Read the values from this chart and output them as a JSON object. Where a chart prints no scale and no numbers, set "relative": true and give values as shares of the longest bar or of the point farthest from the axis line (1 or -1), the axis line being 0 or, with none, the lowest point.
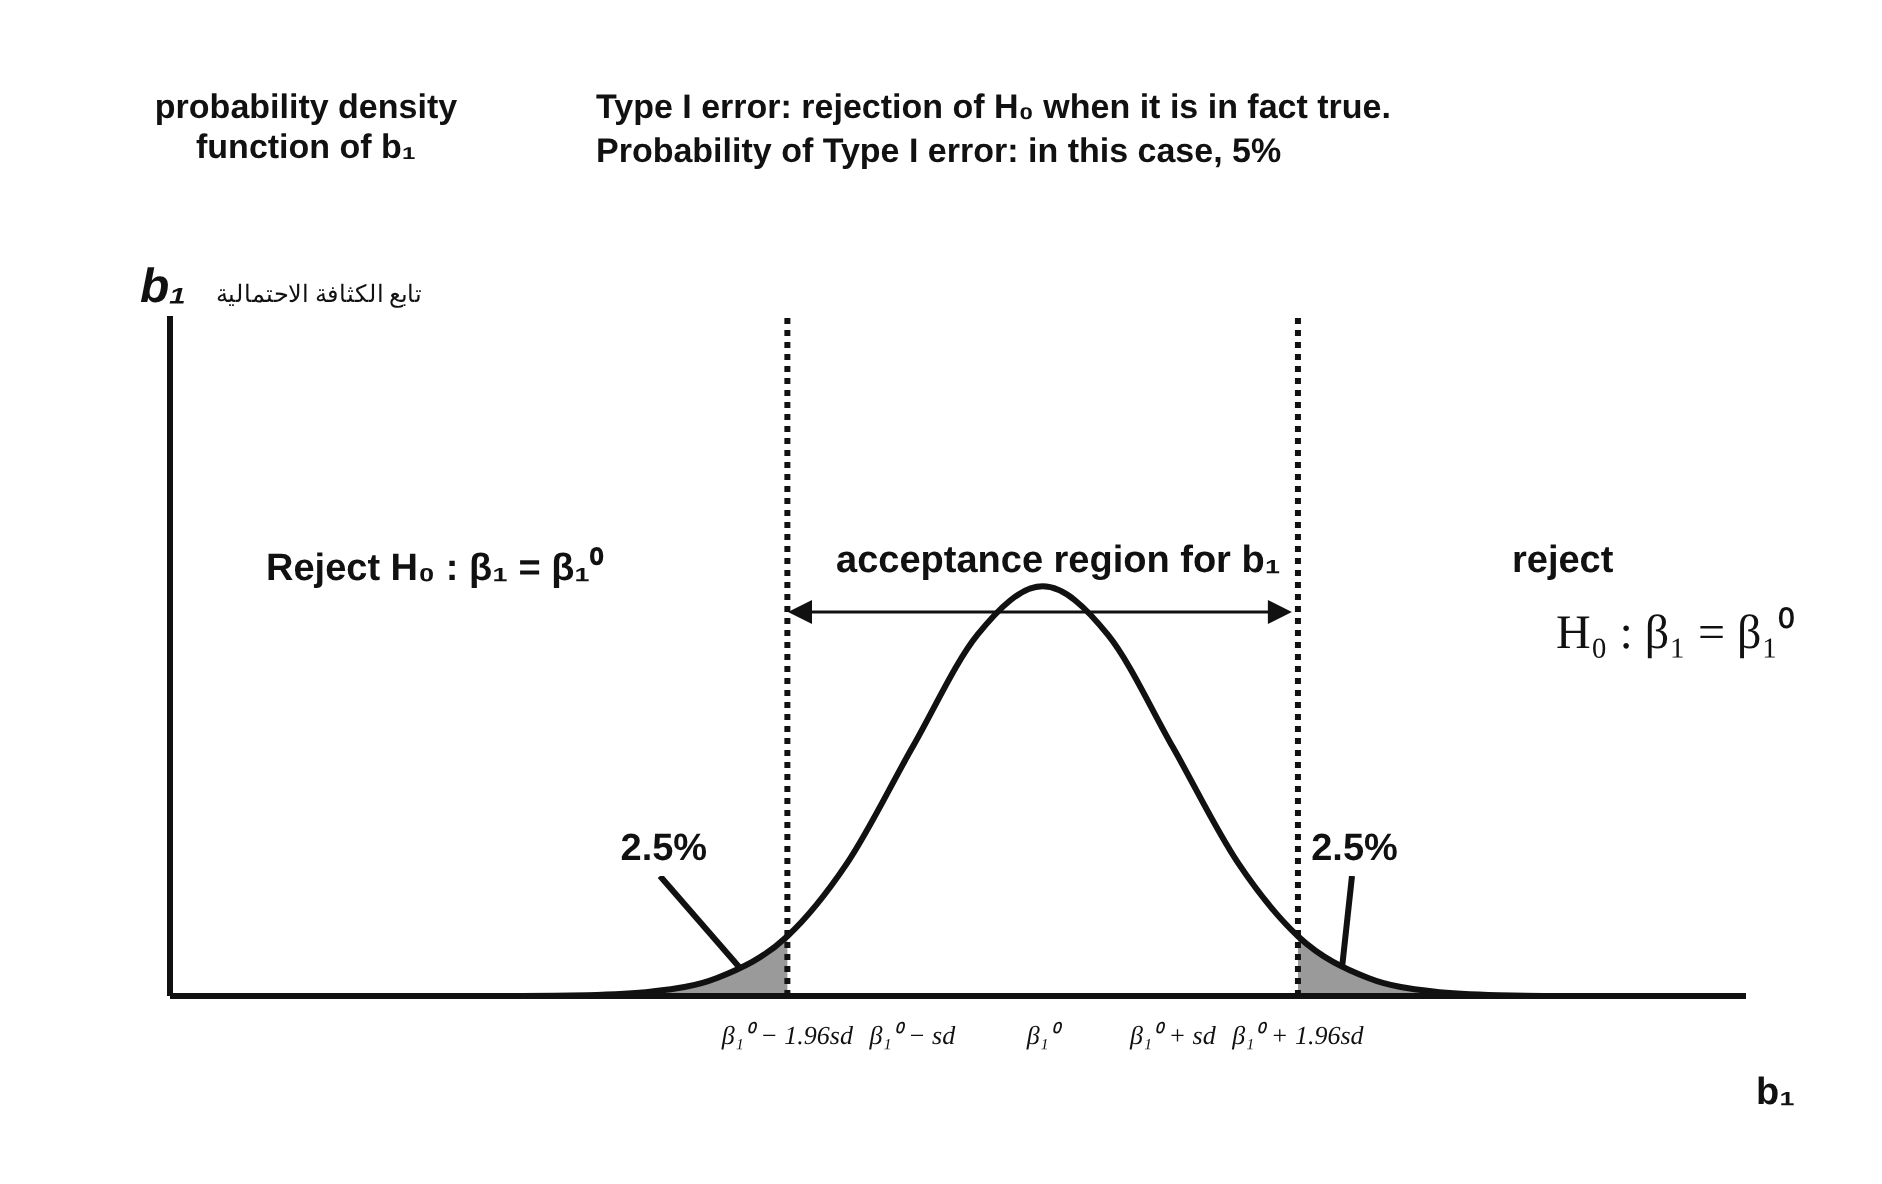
{
  "chart_data": {
    "type": "line",
    "title": "Type I error:  rejection of H₀ when it is in fact true.",
    "subtitle": "Probability of Type I error: in this case, 5%",
    "xlabel": "b₁",
    "relative": true,
    "marker": "none",
    "line_style": "solid",
    "annotations": [
      "probability density function of b₁",
      "b₁",
      "تابع الكثافة الاحتمالية",
      "Reject  H₀ : β₁ = β₁⁰",
      "acceptance region for b₁",
      "reject",
      "H₀ : β₁ = β₁⁰",
      {
        "text": "2.5%",
        "x": -2.3,
        "y": 0.07
      },
      {
        "text": "2.5%",
        "x": 2.3,
        "y": 0.07
      }
    ],
    "xlim": [
      -6.7,
      5.4
    ],
    "xticks": [
      {
        "value": -1.96,
        "label": "β₁⁰ − 1.96sd"
      },
      {
        "value": -1,
        "label": "β₁⁰ − sd"
      },
      {
        "value": 0,
        "label": "β₁⁰"
      },
      {
        "value": 1,
        "label": "β₁⁰ + sd"
      },
      {
        "value": 1.96,
        "label": "β₁⁰ + 1.96sd"
      }
    ],
    "ref_lines": [
      {
        "axis": "x",
        "value": -1.96,
        "line_style": "dotted",
        "color": "#111111"
      },
      {
        "axis": "x",
        "value": 1.96,
        "line_style": "dotted",
        "color": "#111111"
      }
    ],
    "series": [
      {
        "type": "line",
        "color": "#111111",
        "x": [
          -6.5,
          -6,
          -5.5,
          -5,
          -4.5,
          -4,
          -3.5,
          -3,
          -2.5,
          -1.96,
          -1.5,
          -1,
          -0.5,
          0,
          0.5,
          1,
          1.5,
          1.96,
          2.5,
          3,
          3.5,
          4,
          4.5,
          5,
          5.2
        ],
        "values": [
          0,
          0,
          0,
          0,
          0,
          0,
          0.002,
          0.011,
          0.044,
          0.146,
          0.325,
          0.607,
          0.882,
          1,
          0.882,
          0.607,
          0.325,
          0.146,
          0.044,
          0.011,
          0.002,
          0,
          0,
          0,
          0
        ]
      },
      {
        "type": "area",
        "color": "#888888",
        "x": [
          -4,
          -3.5,
          -3,
          -2.5,
          -1.96
        ],
        "values": [
          0,
          0.002,
          0.011,
          0.044,
          0.146
        ]
      },
      {
        "type": "area",
        "color": "#888888",
        "x": [
          1.96,
          2.5,
          3,
          3.5,
          4
        ],
        "values": [
          0.146,
          0.044,
          0.011,
          0.002,
          0
        ]
      }
    ]
  }
}
